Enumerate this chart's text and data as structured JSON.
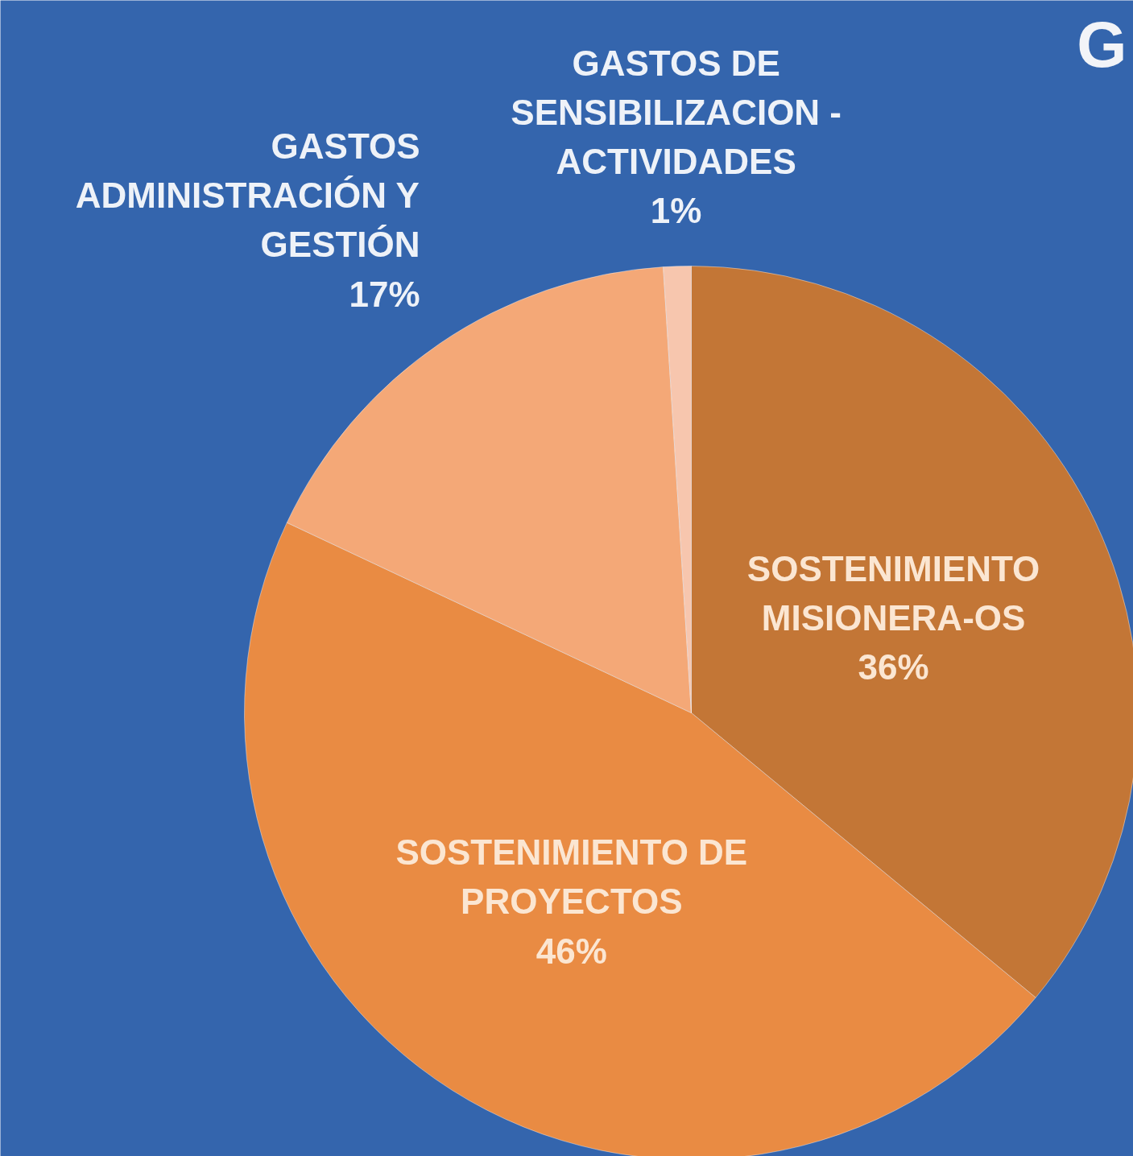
{
  "chart_data": {
    "type": "pie",
    "title": "G",
    "categories": [
      "SOSTENIMIENTO\nMISIONERA-OS",
      "SOSTENIMIENTO DE\nPROYECTOS",
      "GASTOS\nADMINISTRACIÓN Y\nGESTIÓN",
      "GASTOS DE\nSENSIBILIZACION -\nACTIVIDADES"
    ],
    "values": [
      36,
      46,
      17,
      1
    ],
    "value_labels": [
      "36%",
      "46%",
      "17%",
      "1%"
    ],
    "colors": [
      "#c37636",
      "#e98b43",
      "#f4a877",
      "#f7c6ae"
    ]
  }
}
